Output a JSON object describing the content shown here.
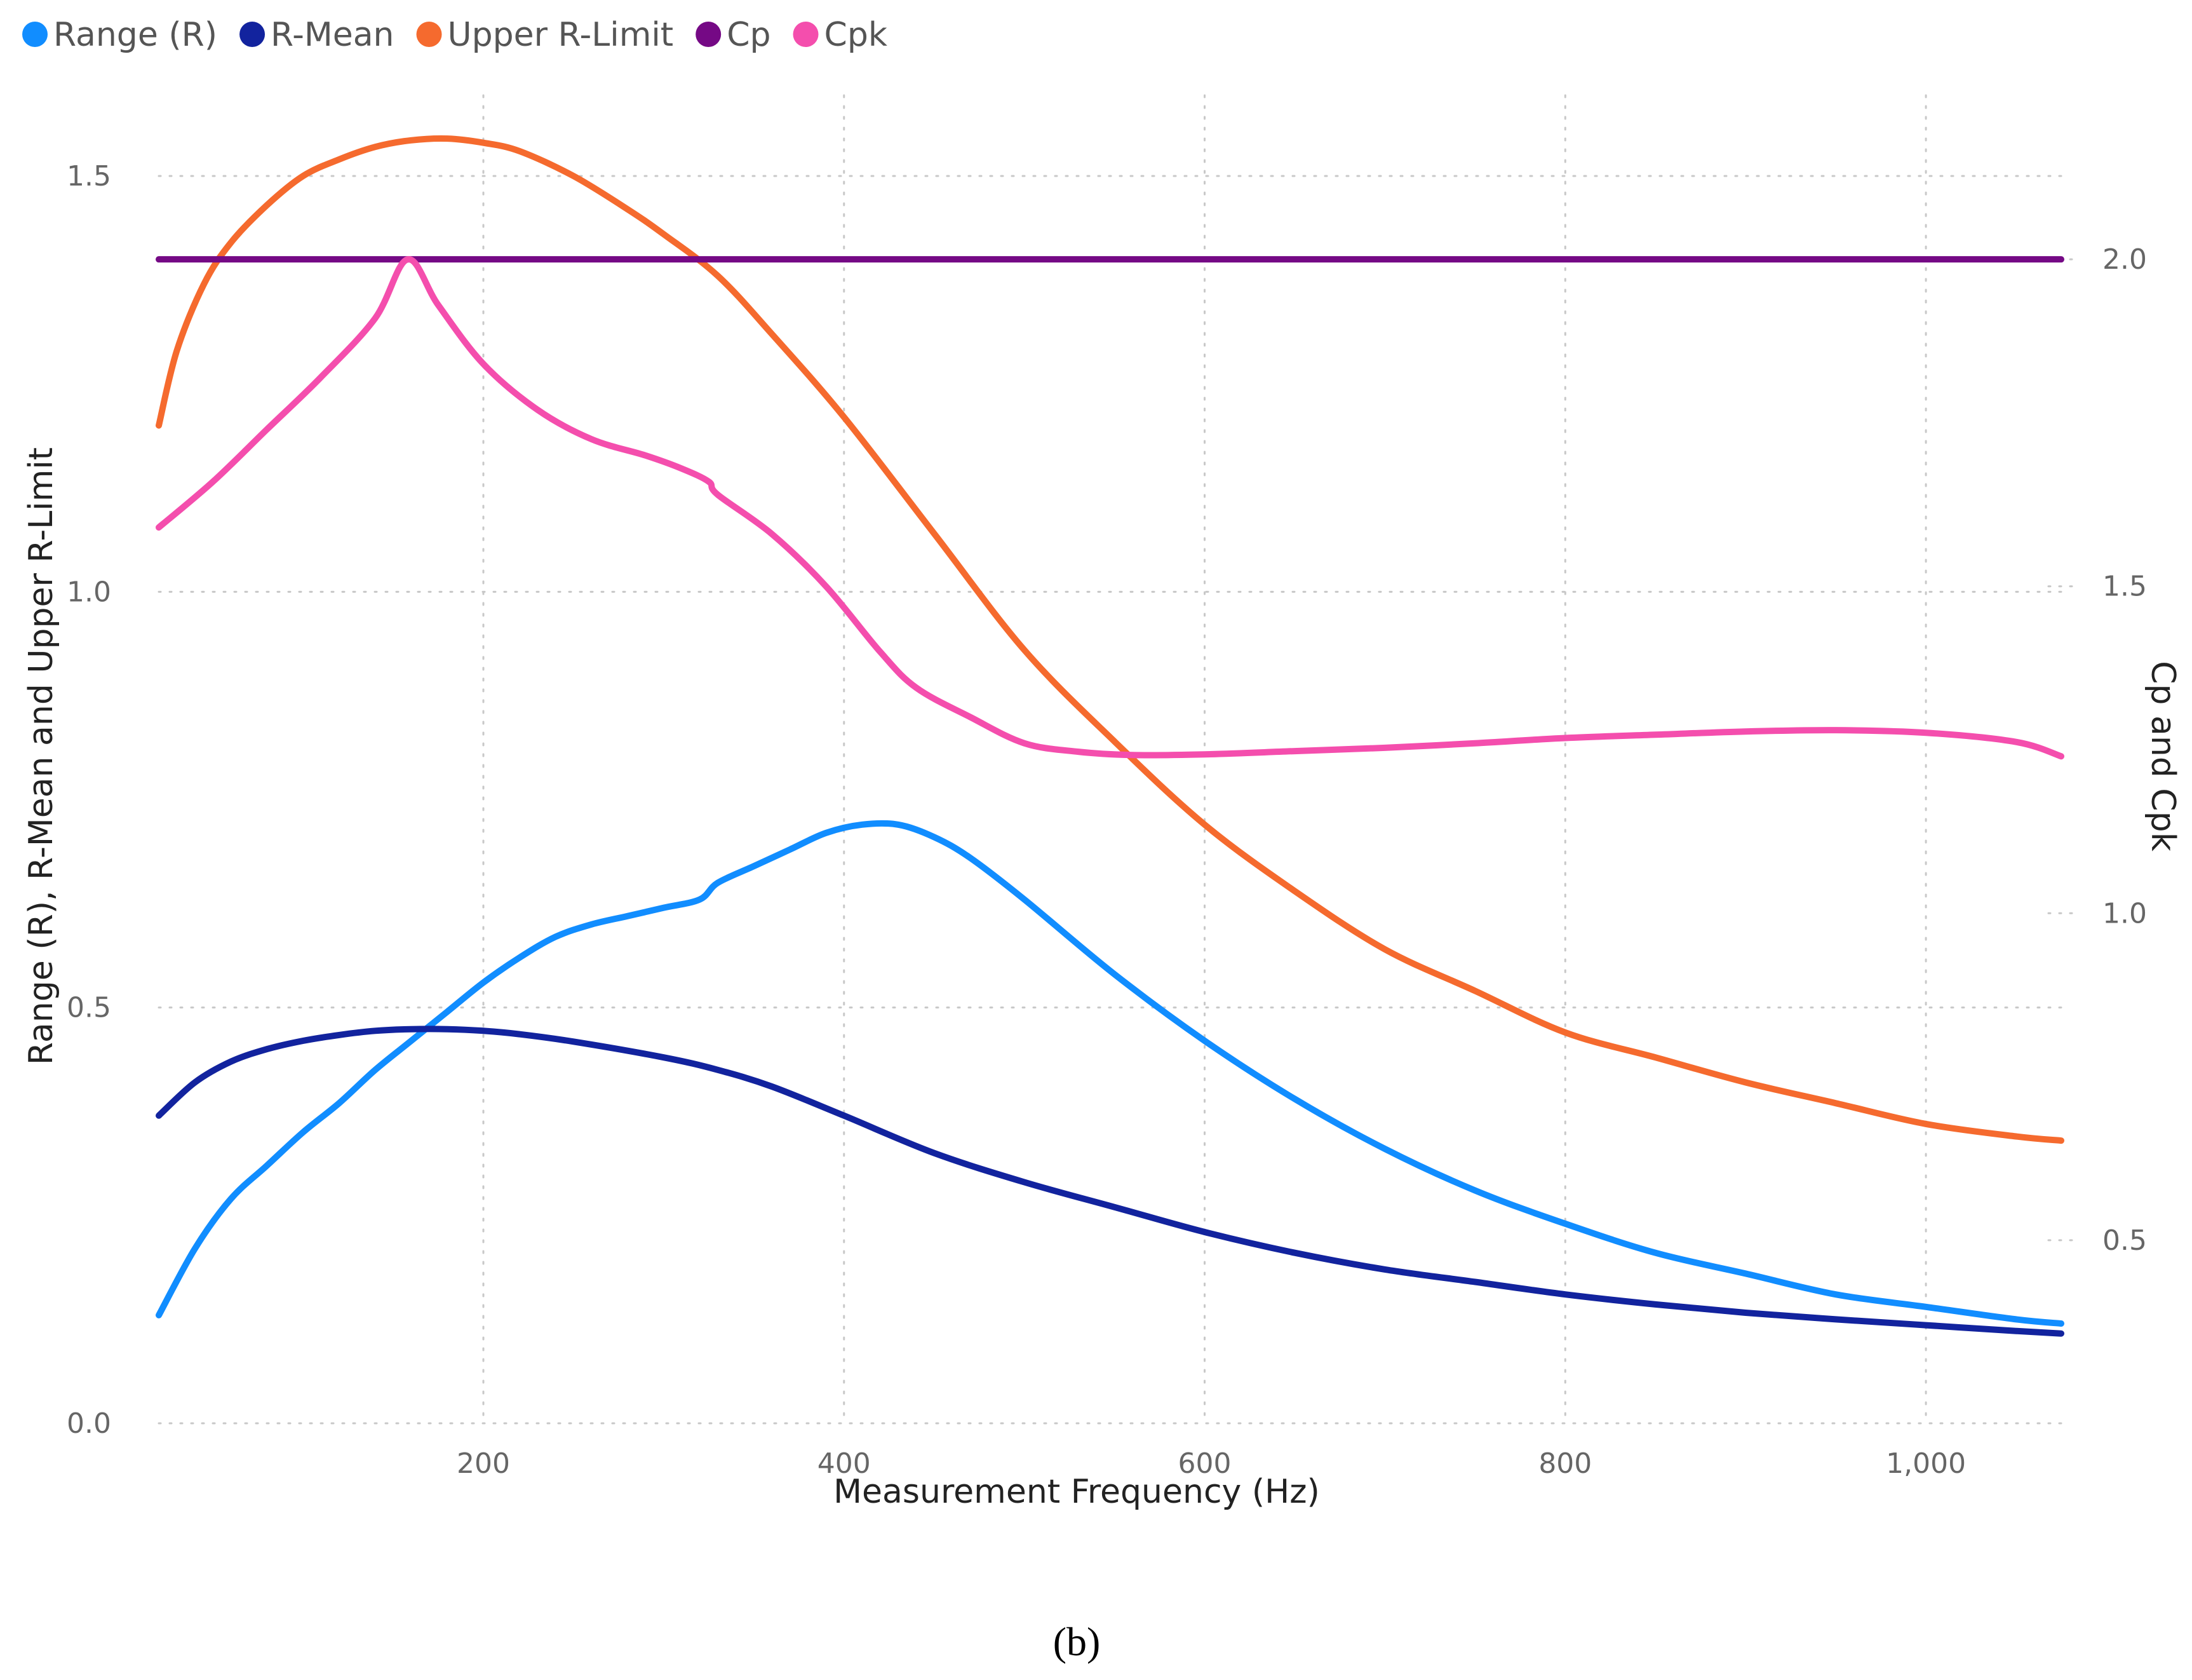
{
  "chart_data": {
    "type": "line",
    "title": "",
    "caption": "(b)",
    "xlabel": "Measurement Frequency (Hz)",
    "ylabel": "Range (R), R-Mean and Upper R-Limit",
    "y2label": "Cp and Cpk",
    "xlim": [
      20,
      1075
    ],
    "ylim": [
      0,
      1.62
    ],
    "y2lim": [
      0.22,
      2.28
    ],
    "x_ticks": [
      {
        "value": 200,
        "label": "200"
      },
      {
        "value": 400,
        "label": "400"
      },
      {
        "value": 600,
        "label": "600"
      },
      {
        "value": 800,
        "label": "800"
      },
      {
        "value": 1000,
        "label": "1,000"
      }
    ],
    "y_ticks": [
      {
        "value": 0,
        "label": "0.0"
      },
      {
        "value": 0.5,
        "label": "0.5"
      },
      {
        "value": 1.0,
        "label": "1.0"
      },
      {
        "value": 1.5,
        "label": "1.5"
      }
    ],
    "y2_ticks": [
      {
        "value": 0.5,
        "label": "0.5"
      },
      {
        "value": 1.0,
        "label": "1.0"
      },
      {
        "value": 1.5,
        "label": "1.5"
      },
      {
        "value": 2.0,
        "label": "2.0"
      }
    ],
    "legend_position": "top-left",
    "series": [
      {
        "name": "Range (R)",
        "color": "#118DFF",
        "axis": "left",
        "points": [
          [
            20,
            0.13
          ],
          [
            40,
            0.21
          ],
          [
            60,
            0.27
          ],
          [
            80,
            0.31
          ],
          [
            100,
            0.35
          ],
          [
            120,
            0.385
          ],
          [
            140,
            0.425
          ],
          [
            160,
            0.46
          ],
          [
            180,
            0.495
          ],
          [
            200,
            0.53
          ],
          [
            220,
            0.56
          ],
          [
            240,
            0.585
          ],
          [
            260,
            0.6
          ],
          [
            280,
            0.61
          ],
          [
            300,
            0.62
          ],
          [
            320,
            0.63
          ],
          [
            330,
            0.65
          ],
          [
            350,
            0.67
          ],
          [
            370,
            0.69
          ],
          [
            390,
            0.71
          ],
          [
            410,
            0.72
          ],
          [
            430,
            0.72
          ],
          [
            450,
            0.705
          ],
          [
            470,
            0.68
          ],
          [
            500,
            0.63
          ],
          [
            550,
            0.54
          ],
          [
            600,
            0.46
          ],
          [
            650,
            0.39
          ],
          [
            700,
            0.33
          ],
          [
            750,
            0.28
          ],
          [
            800,
            0.24
          ],
          [
            850,
            0.205
          ],
          [
            900,
            0.18
          ],
          [
            950,
            0.155
          ],
          [
            1000,
            0.14
          ],
          [
            1050,
            0.125
          ],
          [
            1075,
            0.12
          ]
        ]
      },
      {
        "name": "R-Mean",
        "color": "#12239E",
        "axis": "left",
        "points": [
          [
            20,
            0.37
          ],
          [
            40,
            0.41
          ],
          [
            60,
            0.435
          ],
          [
            80,
            0.45
          ],
          [
            100,
            0.46
          ],
          [
            120,
            0.467
          ],
          [
            140,
            0.472
          ],
          [
            160,
            0.474
          ],
          [
            180,
            0.474
          ],
          [
            200,
            0.472
          ],
          [
            220,
            0.468
          ],
          [
            250,
            0.459
          ],
          [
            300,
            0.44
          ],
          [
            330,
            0.425
          ],
          [
            360,
            0.405
          ],
          [
            400,
            0.37
          ],
          [
            450,
            0.325
          ],
          [
            500,
            0.29
          ],
          [
            550,
            0.26
          ],
          [
            600,
            0.23
          ],
          [
            650,
            0.205
          ],
          [
            700,
            0.185
          ],
          [
            750,
            0.17
          ],
          [
            800,
            0.155
          ],
          [
            850,
            0.143
          ],
          [
            900,
            0.133
          ],
          [
            950,
            0.125
          ],
          [
            1000,
            0.118
          ],
          [
            1050,
            0.111
          ],
          [
            1075,
            0.108
          ]
        ]
      },
      {
        "name": "Upper R-Limit",
        "color": "#F56A2E",
        "axis": "left",
        "points": [
          [
            20,
            1.2
          ],
          [
            30,
            1.29
          ],
          [
            45,
            1.37
          ],
          [
            60,
            1.42
          ],
          [
            80,
            1.465
          ],
          [
            100,
            1.5
          ],
          [
            120,
            1.52
          ],
          [
            140,
            1.535
          ],
          [
            160,
            1.543
          ],
          [
            180,
            1.545
          ],
          [
            200,
            1.54
          ],
          [
            220,
            1.53
          ],
          [
            250,
            1.5
          ],
          [
            280,
            1.46
          ],
          [
            300,
            1.43
          ],
          [
            330,
            1.38
          ],
          [
            360,
            1.31
          ],
          [
            400,
            1.21
          ],
          [
            450,
            1.07
          ],
          [
            500,
            0.93
          ],
          [
            550,
            0.82
          ],
          [
            600,
            0.72
          ],
          [
            650,
            0.64
          ],
          [
            700,
            0.57
          ],
          [
            750,
            0.52
          ],
          [
            800,
            0.47
          ],
          [
            850,
            0.44
          ],
          [
            900,
            0.41
          ],
          [
            950,
            0.385
          ],
          [
            1000,
            0.36
          ],
          [
            1050,
            0.345
          ],
          [
            1075,
            0.34
          ]
        ]
      },
      {
        "name": "Cp",
        "color": "#750985",
        "axis": "right",
        "points": [
          [
            20,
            2.0
          ],
          [
            1075,
            2.0
          ]
        ]
      },
      {
        "name": "Cpk",
        "color": "#F44EAD",
        "axis": "right",
        "points": [
          [
            20,
            1.59
          ],
          [
            50,
            1.66
          ],
          [
            80,
            1.74
          ],
          [
            110,
            1.82
          ],
          [
            140,
            1.91
          ],
          [
            158,
            2.0
          ],
          [
            175,
            1.93
          ],
          [
            200,
            1.84
          ],
          [
            230,
            1.77
          ],
          [
            260,
            1.725
          ],
          [
            290,
            1.7
          ],
          [
            310,
            1.68
          ],
          [
            325,
            1.66
          ],
          [
            330,
            1.64
          ],
          [
            360,
            1.58
          ],
          [
            390,
            1.5
          ],
          [
            420,
            1.4
          ],
          [
            440,
            1.345
          ],
          [
            470,
            1.3
          ],
          [
            500,
            1.26
          ],
          [
            530,
            1.247
          ],
          [
            560,
            1.242
          ],
          [
            600,
            1.243
          ],
          [
            650,
            1.248
          ],
          [
            700,
            1.253
          ],
          [
            750,
            1.26
          ],
          [
            800,
            1.268
          ],
          [
            850,
            1.273
          ],
          [
            900,
            1.278
          ],
          [
            950,
            1.28
          ],
          [
            1000,
            1.276
          ],
          [
            1050,
            1.262
          ],
          [
            1075,
            1.24
          ]
        ]
      }
    ]
  }
}
